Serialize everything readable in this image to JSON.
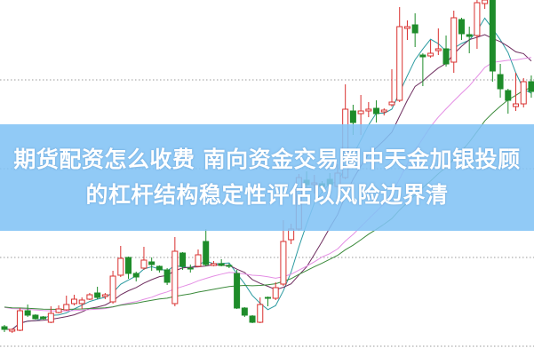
{
  "title": "期货配资怎么收费 南向资金交易圈中天金加银投顾的杠杆结构稳定性评估以风险边界清",
  "colors": {
    "up": "#d9302f",
    "down": "#1e8c2a",
    "grid": "#999999",
    "banner": "#82c3f5"
  },
  "chart_data": {
    "type": "candlestick",
    "ylim": [
      0,
      40
    ],
    "grid": true,
    "gridlines": [
      1,
      11,
      21,
      31
    ],
    "moving_averages": [
      {
        "period": 5,
        "color": "#2a9aa0"
      },
      {
        "period": 10,
        "color": "#6e2d5f"
      },
      {
        "period": 20,
        "color": "#e48ee4"
      },
      {
        "period": 30,
        "color": "#3b8a3b"
      }
    ],
    "candles": [
      {
        "o": 3.2,
        "c": 2.9,
        "h": 3.4,
        "l": 2.6
      },
      {
        "o": 2.7,
        "c": 2.9,
        "h": 3.0,
        "l": 2.5
      },
      {
        "o": 2.8,
        "c": 5.0,
        "h": 5.3,
        "l": 2.7
      },
      {
        "o": 5.0,
        "c": 4.5,
        "h": 5.7,
        "l": 4.3
      },
      {
        "o": 4.5,
        "c": 4.1,
        "h": 4.6,
        "l": 4.0
      },
      {
        "o": 4.3,
        "c": 4.1,
        "h": 4.4,
        "l": 4.0
      },
      {
        "o": 3.7,
        "c": 4.7,
        "h": 5.5,
        "l": 3.6
      },
      {
        "o": 4.8,
        "c": 5.2,
        "h": 5.6,
        "l": 4.7
      },
      {
        "o": 5.1,
        "c": 5.7,
        "h": 6.7,
        "l": 5.0
      },
      {
        "o": 5.8,
        "c": 6.3,
        "h": 6.8,
        "l": 5.6
      },
      {
        "o": 5.8,
        "c": 6.2,
        "h": 6.5,
        "l": 5.2
      },
      {
        "o": 6.3,
        "c": 6.8,
        "h": 7.0,
        "l": 6.2
      },
      {
        "o": 7.0,
        "c": 6.5,
        "h": 7.7,
        "l": 6.3
      },
      {
        "o": 6.6,
        "c": 6.8,
        "h": 7.0,
        "l": 6.3
      },
      {
        "o": 6.0,
        "c": 8.9,
        "h": 9.5,
        "l": 5.8
      },
      {
        "o": 9.0,
        "c": 10.9,
        "h": 12.3,
        "l": 8.8
      },
      {
        "o": 11.0,
        "c": 9.2,
        "h": 11.1,
        "l": 8.6
      },
      {
        "o": 9.2,
        "c": 8.8,
        "h": 9.4,
        "l": 8.3
      },
      {
        "o": 9.8,
        "c": 10.7,
        "h": 12.2,
        "l": 9.6
      },
      {
        "o": 10.5,
        "c": 10.2,
        "h": 11.0,
        "l": 9.5
      },
      {
        "o": 10.0,
        "c": 9.6,
        "h": 10.1,
        "l": 9.3
      },
      {
        "o": 9.6,
        "c": 8.2,
        "h": 9.8,
        "l": 7.9
      },
      {
        "o": 5.8,
        "c": 11.7,
        "h": 13.3,
        "l": 5.5
      },
      {
        "o": 11.5,
        "c": 10.0,
        "h": 11.6,
        "l": 9.6
      },
      {
        "o": 9.8,
        "c": 9.7,
        "h": 10.2,
        "l": 9.3
      },
      {
        "o": 10.0,
        "c": 11.3,
        "h": 11.9,
        "l": 9.9
      },
      {
        "o": 12.8,
        "c": 10.2,
        "h": 14.2,
        "l": 10.0
      },
      {
        "o": 10.1,
        "c": 10.3,
        "h": 10.6,
        "l": 10.0
      },
      {
        "o": 10.3,
        "c": 10.1,
        "h": 10.8,
        "l": 10.0
      },
      {
        "o": 10.1,
        "c": 10.0,
        "h": 10.3,
        "l": 9.8
      },
      {
        "o": 9.2,
        "c": 5.3,
        "h": 9.6,
        "l": 5.2
      },
      {
        "o": 5.3,
        "c": 4.5,
        "h": 5.4,
        "l": 4.3
      },
      {
        "o": 4.4,
        "c": 3.7,
        "h": 4.5,
        "l": 3.6
      },
      {
        "o": 3.7,
        "c": 5.7,
        "h": 6.5,
        "l": 3.6
      },
      {
        "o": 6.5,
        "c": 6.4,
        "h": 6.6,
        "l": 5.5
      },
      {
        "o": 6.4,
        "c": 7.6,
        "h": 8.2,
        "l": 6.2
      },
      {
        "o": 8.0,
        "c": 12.8,
        "h": 15.2,
        "l": 7.8
      },
      {
        "o": 13.0,
        "c": 14.2,
        "h": 14.8,
        "l": 12.5
      },
      {
        "o": 14.2,
        "c": 20.0,
        "h": 20.4,
        "l": 14.0
      },
      {
        "o": 19.7,
        "c": 19.2,
        "h": 20.7,
        "l": 18.9
      },
      {
        "o": 19.2,
        "c": 19.4,
        "h": 20.3,
        "l": 18.2
      },
      {
        "o": 19.3,
        "c": 19.0,
        "h": 19.6,
        "l": 18.5
      },
      {
        "o": 19.8,
        "c": 19.2,
        "h": 20.5,
        "l": 18.2
      },
      {
        "o": 19.0,
        "c": 20.5,
        "h": 21.5,
        "l": 18.9
      },
      {
        "o": 20.0,
        "c": 27.7,
        "h": 30.5,
        "l": 19.8
      },
      {
        "o": 27.5,
        "c": 26.2,
        "h": 28.2,
        "l": 24.8
      },
      {
        "o": 27.2,
        "c": 27.5,
        "h": 29.3,
        "l": 24.8
      },
      {
        "o": 27.5,
        "c": 27.7,
        "h": 28.5,
        "l": 26.8
      },
      {
        "o": 27.8,
        "c": 27.2,
        "h": 28.7,
        "l": 26.2
      },
      {
        "o": 27.4,
        "c": 27.6,
        "h": 27.8,
        "l": 27.0
      },
      {
        "o": 28.2,
        "c": 28.5,
        "h": 32.2,
        "l": 28.0
      },
      {
        "o": 28.7,
        "c": 37.0,
        "h": 39.2,
        "l": 28.5
      },
      {
        "o": 36.8,
        "c": 37.0,
        "h": 37.7,
        "l": 35.5
      },
      {
        "o": 37.2,
        "c": 36.3,
        "h": 38.5,
        "l": 34.7
      },
      {
        "o": 33.8,
        "c": 33.6,
        "h": 34.0,
        "l": 30.3
      },
      {
        "o": 33.7,
        "c": 34.0,
        "h": 35.5,
        "l": 33.5
      },
      {
        "o": 34.3,
        "c": 34.5,
        "h": 36.8,
        "l": 33.8
      },
      {
        "o": 34.5,
        "c": 32.8,
        "h": 36.0,
        "l": 32.5
      },
      {
        "o": 33.0,
        "c": 38.0,
        "h": 38.8,
        "l": 31.8
      },
      {
        "o": 37.8,
        "c": 36.2,
        "h": 38.0,
        "l": 35.5
      },
      {
        "o": 36.1,
        "c": 35.9,
        "h": 37.0,
        "l": 34.0
      },
      {
        "o": 36.0,
        "c": 39.7,
        "h": 40.0,
        "l": 34.5
      },
      {
        "o": 39.6,
        "c": 40.0,
        "h": 40.5,
        "l": 39.0
      },
      {
        "o": 40.0,
        "c": 32.0,
        "h": 40.0,
        "l": 30.8
      },
      {
        "o": 31.6,
        "c": 30.0,
        "h": 32.8,
        "l": 29.0
      },
      {
        "o": 29.8,
        "c": 28.7,
        "h": 30.0,
        "l": 27.2
      },
      {
        "o": 28.0,
        "c": 28.3,
        "h": 31.8,
        "l": 27.5
      },
      {
        "o": 28.3,
        "c": 30.8,
        "h": 31.2,
        "l": 27.9
      },
      {
        "o": 30.8,
        "c": 29.7,
        "h": 31.5,
        "l": 29.0
      }
    ]
  }
}
